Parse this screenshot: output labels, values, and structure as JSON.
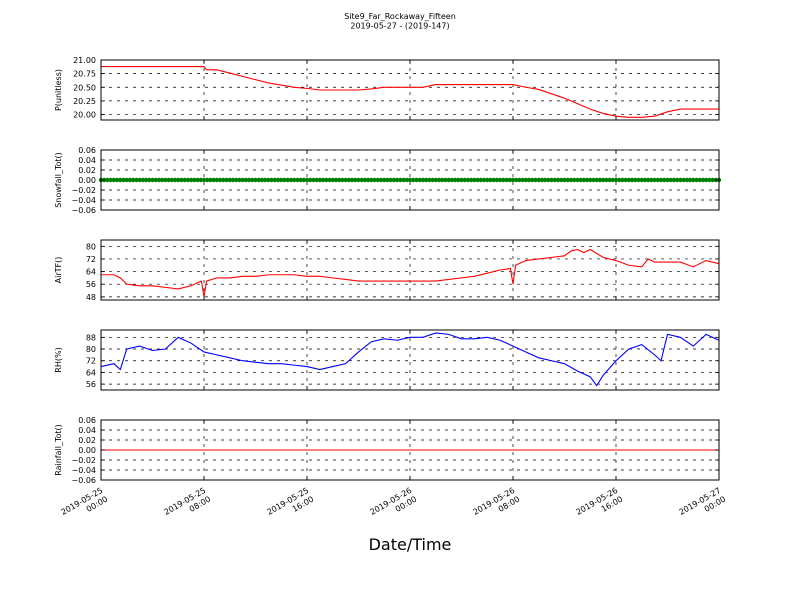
{
  "figure": {
    "title_line1": "Site9_Far_Rockaway_Fifteen",
    "title_line2": "2019-05-27 - (2019-147)",
    "xlabel": "Date/Time",
    "x_ticks": [
      {
        "line1": "2019-05-25",
        "line2": "00:00",
        "hours": 0
      },
      {
        "line1": "2019-05-25",
        "line2": "08:00",
        "hours": 8
      },
      {
        "line1": "2019-05-25",
        "line2": "16:00",
        "hours": 16
      },
      {
        "line1": "2019-05-26",
        "line2": "00:00",
        "hours": 24
      },
      {
        "line1": "2019-05-26",
        "line2": "08:00",
        "hours": 32
      },
      {
        "line1": "2019-05-26",
        "line2": "16:00",
        "hours": 40
      },
      {
        "line1": "2019-05-27",
        "line2": "00:00",
        "hours": 48
      }
    ]
  },
  "chart_data": [
    {
      "type": "line",
      "ylabel": "P(unitless)",
      "color": "#ff0000",
      "ylim": [
        19.9,
        21.0
      ],
      "yticks": [
        20.0,
        20.25,
        20.5,
        20.75,
        21.0
      ],
      "ytick_labels": [
        "20.00",
        "20.25",
        "20.50",
        "20.75",
        "21.00"
      ],
      "xlim_hours": [
        0,
        48
      ],
      "grid": true,
      "x_hours": [
        0,
        1,
        2,
        3,
        4,
        5,
        6,
        7,
        8,
        8.2,
        9,
        10,
        11,
        12,
        13,
        14,
        15,
        16,
        17,
        18,
        19,
        20,
        21,
        22,
        23,
        24,
        25,
        26,
        27,
        28,
        29,
        30,
        31,
        32,
        33,
        34,
        35,
        36,
        37,
        38,
        39,
        40,
        41,
        42,
        43,
        44,
        45,
        46,
        47,
        48
      ],
      "values": [
        20.88,
        20.88,
        20.88,
        20.88,
        20.88,
        20.88,
        20.88,
        20.88,
        20.88,
        20.82,
        20.82,
        20.76,
        20.7,
        20.64,
        20.58,
        20.54,
        20.5,
        20.48,
        20.45,
        20.45,
        20.45,
        20.45,
        20.47,
        20.5,
        20.5,
        20.5,
        20.5,
        20.55,
        20.55,
        20.55,
        20.55,
        20.55,
        20.55,
        20.55,
        20.5,
        20.46,
        20.38,
        20.3,
        20.2,
        20.1,
        20.02,
        19.97,
        19.95,
        19.95,
        19.97,
        20.05,
        20.1,
        20.1,
        20.1,
        20.1
      ]
    },
    {
      "type": "scatter",
      "ylabel": "Snowfall_Tot()",
      "color": "#008000",
      "ylim": [
        -0.06,
        0.06
      ],
      "yticks": [
        -0.06,
        -0.04,
        -0.02,
        0.0,
        0.02,
        0.04,
        0.06
      ],
      "ytick_labels": [
        "−0.06",
        "−0.04",
        "−0.02",
        "0.00",
        "0.02",
        "0.04",
        "0.06"
      ],
      "xlim_hours": [
        0,
        48
      ],
      "grid": true,
      "x_hours_range": [
        0,
        48
      ],
      "x_hours_step": 0.25,
      "constant_value": 0.0
    },
    {
      "type": "line",
      "ylabel": "AirTF()",
      "color": "#ff0000",
      "ylim": [
        46,
        84
      ],
      "yticks": [
        48,
        56,
        64,
        72,
        80
      ],
      "ytick_labels": [
        "48",
        "56",
        "64",
        "72",
        "80"
      ],
      "xlim_hours": [
        0,
        48
      ],
      "grid": true,
      "x_hours": [
        0,
        1,
        1.5,
        2,
        3,
        4,
        5,
        6,
        7,
        7.8,
        8,
        8.2,
        9,
        10,
        11,
        12,
        13,
        14,
        15,
        16,
        17,
        18,
        19,
        20,
        21,
        22,
        23,
        24,
        25,
        26,
        27,
        28,
        29,
        30,
        31,
        31.8,
        32,
        32.2,
        33,
        34,
        35,
        36,
        36.5,
        37,
        37.5,
        38,
        39,
        40,
        41,
        42,
        42.5,
        43,
        44,
        45,
        46,
        47,
        48
      ],
      "values": [
        62,
        62,
        60,
        56,
        55,
        55,
        54,
        53,
        55,
        58,
        48,
        58,
        60,
        60,
        61,
        61,
        62,
        62,
        62,
        61,
        61,
        60,
        59,
        58,
        58,
        58,
        58,
        58,
        58,
        58,
        59,
        60,
        61,
        63,
        65,
        66,
        56,
        68,
        71,
        72,
        73,
        74,
        77,
        78,
        76,
        78,
        73,
        71,
        68,
        67,
        72,
        70,
        70,
        70,
        67,
        71,
        69
      ]
    },
    {
      "type": "line",
      "ylabel": "RH(%)",
      "color": "#0000ff",
      "ylim": [
        52,
        93
      ],
      "yticks": [
        56,
        64,
        72,
        80,
        88
      ],
      "ytick_labels": [
        "56",
        "64",
        "72",
        "80",
        "88"
      ],
      "xlim_hours": [
        0,
        48
      ],
      "grid": true,
      "x_hours": [
        0,
        1,
        1.5,
        2,
        3,
        4,
        5,
        6,
        7,
        8,
        9,
        10,
        11,
        12,
        13,
        14,
        15,
        16,
        17,
        18,
        19,
        20,
        21,
        22,
        23,
        24,
        25,
        26,
        27,
        28,
        29,
        30,
        31,
        32,
        33,
        34,
        35,
        36,
        37,
        38,
        38.5,
        39,
        40,
        41,
        42,
        43,
        43.5,
        44,
        45,
        46,
        47,
        48
      ],
      "values": [
        68,
        70,
        66,
        80,
        82,
        79,
        80,
        88,
        84,
        78,
        76,
        74,
        72,
        71,
        70,
        70,
        69,
        68,
        66,
        68,
        70,
        78,
        85,
        87,
        86,
        88,
        88,
        91,
        90,
        87,
        87,
        88,
        86,
        82,
        78,
        74,
        72,
        70,
        65,
        61,
        55,
        62,
        72,
        80,
        83,
        76,
        72,
        90,
        88,
        82,
        90,
        86
      ]
    },
    {
      "type": "line",
      "ylabel": "Rainfall_Tot()",
      "color": "#ff0000",
      "ylim": [
        -0.06,
        0.06
      ],
      "yticks": [
        -0.06,
        -0.04,
        -0.02,
        0.0,
        0.02,
        0.04,
        0.06
      ],
      "ytick_labels": [
        "−0.06",
        "−0.04",
        "−0.02",
        "0.00",
        "0.02",
        "0.04",
        "0.06"
      ],
      "xlim_hours": [
        0,
        48
      ],
      "grid": true,
      "x_hours": [
        0,
        48
      ],
      "values": [
        0.0,
        0.0
      ]
    }
  ]
}
